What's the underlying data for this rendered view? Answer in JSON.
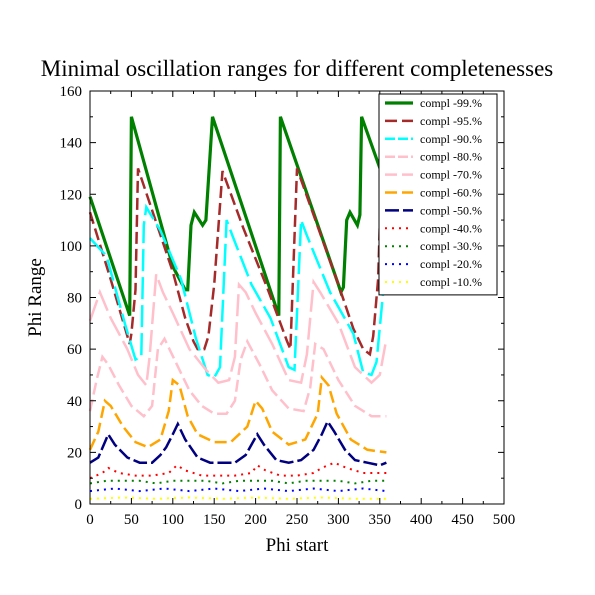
{
  "chart_data": {
    "type": "line",
    "title": "Minimal oscillation ranges for different completenesses",
    "xlabel": "Phi start",
    "ylabel": "Phi Range",
    "xlim": [
      0,
      500
    ],
    "ylim": [
      0,
      160
    ],
    "xticks": [
      0,
      50,
      100,
      150,
      200,
      250,
      300,
      350,
      400,
      450,
      500
    ],
    "yticks": [
      0,
      20,
      40,
      60,
      80,
      100,
      120,
      140,
      160
    ],
    "grid": false,
    "legend_position": "top-right",
    "series": [
      {
        "name": "compl -99.%",
        "color": "#008000",
        "dash": "solid",
        "width": 3.2,
        "points": [
          [
            0,
            119
          ],
          [
            48,
            73
          ],
          [
            50,
            150
          ],
          [
            100,
            92
          ],
          [
            115,
            83
          ],
          [
            118,
            83
          ],
          [
            122,
            108
          ],
          [
            126,
            113
          ],
          [
            136,
            108
          ],
          [
            140,
            110
          ],
          [
            148,
            150
          ],
          [
            228,
            73
          ],
          [
            230,
            150
          ],
          [
            300,
            85
          ],
          [
            303,
            82
          ],
          [
            306,
            84
          ],
          [
            310,
            110
          ],
          [
            314,
            113
          ],
          [
            323,
            108
          ],
          [
            326,
            112
          ],
          [
            328,
            150
          ],
          [
            358,
            123
          ]
        ]
      },
      {
        "name": "compl -95.%",
        "color": "#a52a2a",
        "dash": "12,5",
        "width": 2.5,
        "points": [
          [
            0,
            113
          ],
          [
            25,
            87
          ],
          [
            48,
            62
          ],
          [
            50,
            66
          ],
          [
            55,
            83
          ],
          [
            58,
            130
          ],
          [
            100,
            90
          ],
          [
            115,
            72
          ],
          [
            125,
            63
          ],
          [
            130,
            60
          ],
          [
            138,
            60
          ],
          [
            143,
            65
          ],
          [
            150,
            85
          ],
          [
            160,
            129
          ],
          [
            185,
            107
          ],
          [
            215,
            83
          ],
          [
            238,
            63
          ],
          [
            242,
            60
          ],
          [
            250,
            130
          ],
          [
            300,
            85
          ],
          [
            318,
            68
          ],
          [
            330,
            60
          ],
          [
            338,
            58
          ],
          [
            342,
            65
          ],
          [
            348,
            87
          ],
          [
            352,
            130
          ],
          [
            358,
            122
          ]
        ]
      },
      {
        "name": "compl -90.%",
        "color": "#00ffff",
        "dash": "22,6",
        "width": 2.5,
        "points": [
          [
            0,
            103
          ],
          [
            20,
            96
          ],
          [
            42,
            70
          ],
          [
            55,
            56
          ],
          [
            62,
            57
          ],
          [
            65,
            108
          ],
          [
            68,
            115
          ],
          [
            85,
            106
          ],
          [
            110,
            87
          ],
          [
            128,
            64
          ],
          [
            142,
            50
          ],
          [
            150,
            49
          ],
          [
            157,
            53
          ],
          [
            165,
            110
          ],
          [
            172,
            104
          ],
          [
            195,
            85
          ],
          [
            218,
            72
          ],
          [
            240,
            53
          ],
          [
            247,
            52
          ],
          [
            255,
            110
          ],
          [
            262,
            104
          ],
          [
            290,
            82
          ],
          [
            318,
            66
          ],
          [
            330,
            51
          ],
          [
            340,
            50
          ],
          [
            346,
            55
          ],
          [
            355,
            85
          ],
          [
            358,
            100
          ]
        ]
      },
      {
        "name": "compl -80.%",
        "color": "#ffc0cb",
        "dash": "22,6",
        "width": 2.5,
        "points": [
          [
            0,
            71
          ],
          [
            12,
            82
          ],
          [
            25,
            72
          ],
          [
            45,
            60
          ],
          [
            58,
            50
          ],
          [
            68,
            46
          ],
          [
            72,
            57
          ],
          [
            80,
            89
          ],
          [
            88,
            82
          ],
          [
            100,
            74
          ],
          [
            120,
            60
          ],
          [
            140,
            52
          ],
          [
            155,
            47
          ],
          [
            168,
            48
          ],
          [
            175,
            57
          ],
          [
            180,
            85
          ],
          [
            188,
            82
          ],
          [
            200,
            74
          ],
          [
            220,
            62
          ],
          [
            240,
            48
          ],
          [
            255,
            47
          ],
          [
            262,
            58
          ],
          [
            270,
            86
          ],
          [
            278,
            82
          ],
          [
            300,
            70
          ],
          [
            320,
            53
          ],
          [
            340,
            47
          ],
          [
            350,
            50
          ],
          [
            358,
            64
          ]
        ]
      },
      {
        "name": "compl -70.%",
        "color": "#ffc0cb",
        "dash": "12,5",
        "width": 2.5,
        "points": [
          [
            0,
            36
          ],
          [
            8,
            48
          ],
          [
            15,
            57
          ],
          [
            22,
            54
          ],
          [
            35,
            46
          ],
          [
            50,
            38
          ],
          [
            65,
            34
          ],
          [
            75,
            38
          ],
          [
            82,
            60
          ],
          [
            90,
            64
          ],
          [
            105,
            54
          ],
          [
            120,
            44
          ],
          [
            135,
            38
          ],
          [
            150,
            35
          ],
          [
            165,
            35
          ],
          [
            175,
            40
          ],
          [
            182,
            56
          ],
          [
            190,
            63
          ],
          [
            205,
            54
          ],
          [
            220,
            44
          ],
          [
            240,
            37
          ],
          [
            258,
            36
          ],
          [
            266,
            45
          ],
          [
            272,
            62
          ],
          [
            282,
            60
          ],
          [
            300,
            48
          ],
          [
            320,
            38
          ],
          [
            340,
            34
          ],
          [
            358,
            34
          ]
        ]
      },
      {
        "name": "compl -60.%",
        "color": "#ffa500",
        "dash": "12,5",
        "width": 2.5,
        "points": [
          [
            0,
            21
          ],
          [
            10,
            28
          ],
          [
            18,
            40
          ],
          [
            25,
            38
          ],
          [
            40,
            30
          ],
          [
            55,
            24
          ],
          [
            70,
            22
          ],
          [
            85,
            25
          ],
          [
            95,
            36
          ],
          [
            100,
            48
          ],
          [
            108,
            46
          ],
          [
            118,
            34
          ],
          [
            130,
            27
          ],
          [
            150,
            24
          ],
          [
            170,
            24
          ],
          [
            190,
            30
          ],
          [
            200,
            40
          ],
          [
            208,
            37
          ],
          [
            220,
            28
          ],
          [
            240,
            23
          ],
          [
            260,
            25
          ],
          [
            275,
            35
          ],
          [
            280,
            49
          ],
          [
            288,
            46
          ],
          [
            298,
            35
          ],
          [
            315,
            25
          ],
          [
            335,
            21
          ],
          [
            358,
            20
          ]
        ]
      },
      {
        "name": "compl -50.%",
        "color": "#000080",
        "dash": "14,4",
        "width": 2.5,
        "points": [
          [
            0,
            16
          ],
          [
            10,
            18
          ],
          [
            18,
            24
          ],
          [
            22,
            27
          ],
          [
            30,
            23
          ],
          [
            45,
            18
          ],
          [
            60,
            16
          ],
          [
            75,
            16
          ],
          [
            85,
            19
          ],
          [
            92,
            22
          ],
          [
            100,
            27
          ],
          [
            106,
            31
          ],
          [
            115,
            25
          ],
          [
            130,
            18
          ],
          [
            145,
            16
          ],
          [
            160,
            16
          ],
          [
            175,
            16
          ],
          [
            188,
            19
          ],
          [
            195,
            23
          ],
          [
            202,
            27
          ],
          [
            210,
            23
          ],
          [
            225,
            17
          ],
          [
            240,
            16
          ],
          [
            255,
            17
          ],
          [
            270,
            21
          ],
          [
            280,
            27
          ],
          [
            287,
            32
          ],
          [
            295,
            28
          ],
          [
            308,
            21
          ],
          [
            320,
            17
          ],
          [
            335,
            16
          ],
          [
            350,
            15
          ],
          [
            358,
            16
          ]
        ]
      },
      {
        "name": "compl -40.%",
        "color": "#ff0000",
        "dash": "2,5",
        "width": 2,
        "points": [
          [
            0,
            10
          ],
          [
            15,
            12
          ],
          [
            22,
            14
          ],
          [
            35,
            12
          ],
          [
            55,
            11
          ],
          [
            75,
            11
          ],
          [
            95,
            12
          ],
          [
            105,
            15
          ],
          [
            115,
            13
          ],
          [
            135,
            11
          ],
          [
            155,
            11
          ],
          [
            175,
            11
          ],
          [
            195,
            12
          ],
          [
            202,
            15
          ],
          [
            212,
            13
          ],
          [
            230,
            11
          ],
          [
            250,
            11
          ],
          [
            270,
            12
          ],
          [
            280,
            14
          ],
          [
            295,
            16
          ],
          [
            310,
            14
          ],
          [
            330,
            12
          ],
          [
            358,
            12
          ]
        ]
      },
      {
        "name": "compl -30.%",
        "color": "#008000",
        "dash": "2,5",
        "width": 2,
        "points": [
          [
            0,
            8
          ],
          [
            20,
            9
          ],
          [
            40,
            9
          ],
          [
            60,
            9
          ],
          [
            80,
            8
          ],
          [
            100,
            9
          ],
          [
            120,
            9
          ],
          [
            140,
            9
          ],
          [
            160,
            8
          ],
          [
            180,
            9
          ],
          [
            200,
            9
          ],
          [
            220,
            9
          ],
          [
            240,
            8
          ],
          [
            260,
            9
          ],
          [
            280,
            9
          ],
          [
            300,
            9
          ],
          [
            320,
            8
          ],
          [
            340,
            9
          ],
          [
            358,
            9
          ]
        ]
      },
      {
        "name": "compl -20.%",
        "color": "#0000ff",
        "dash": "2,5",
        "width": 2,
        "points": [
          [
            0,
            5
          ],
          [
            30,
            6
          ],
          [
            60,
            5
          ],
          [
            90,
            6
          ],
          [
            120,
            5
          ],
          [
            150,
            6
          ],
          [
            180,
            5
          ],
          [
            210,
            6
          ],
          [
            240,
            5
          ],
          [
            270,
            6
          ],
          [
            300,
            5
          ],
          [
            330,
            6
          ],
          [
            358,
            5
          ]
        ]
      },
      {
        "name": "compl -10.%",
        "color": "#ffff00",
        "dash": "2,5",
        "width": 2,
        "points": [
          [
            0,
            2
          ],
          [
            40,
            2.5
          ],
          [
            80,
            2
          ],
          [
            120,
            2.5
          ],
          [
            160,
            2
          ],
          [
            200,
            2.5
          ],
          [
            240,
            2
          ],
          [
            280,
            2.5
          ],
          [
            320,
            2
          ],
          [
            358,
            2
          ]
        ]
      }
    ]
  }
}
